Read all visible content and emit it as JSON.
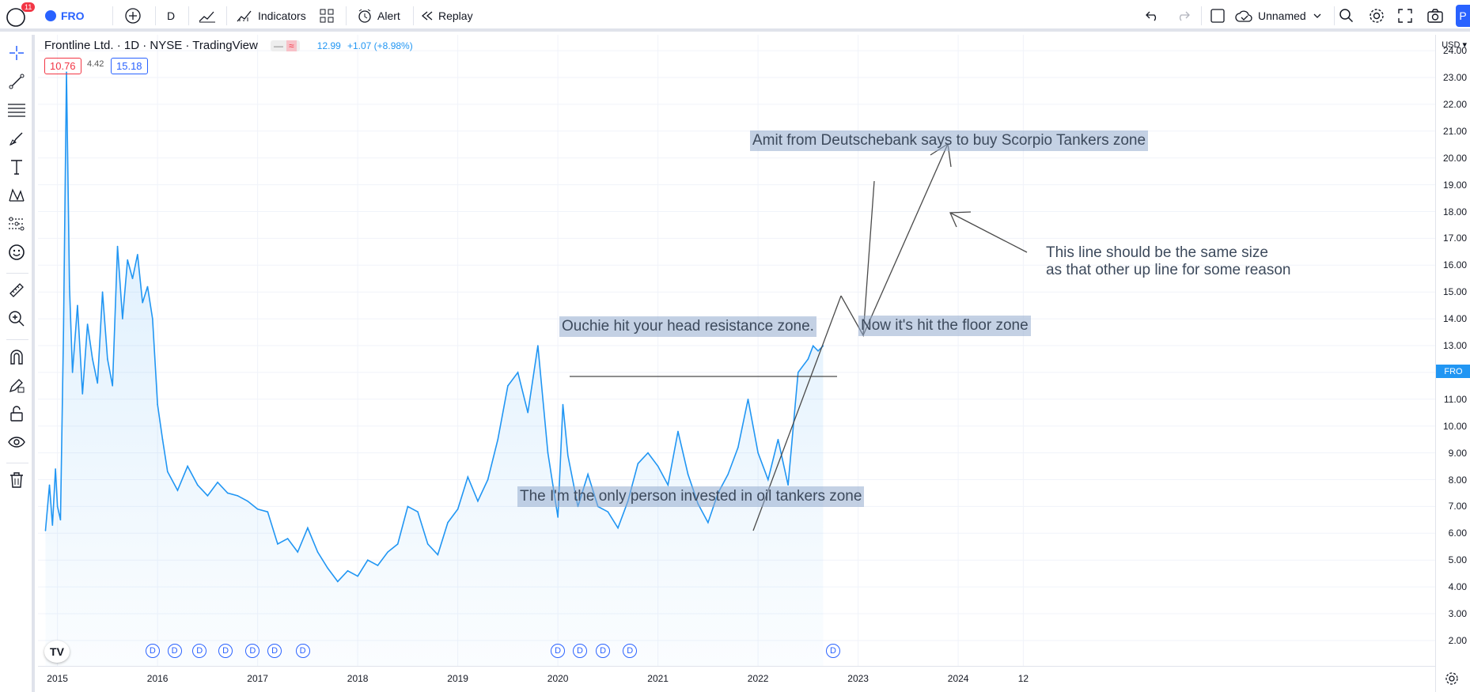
{
  "toolbar": {
    "badge_count": "11",
    "symbol": "FRO",
    "interval": "D",
    "indicators_label": "Indicators",
    "alert_label": "Alert",
    "replay_label": "Replay",
    "layout_name": "Unnamed",
    "publish_label": "P"
  },
  "legend": {
    "title": "Frontline Ltd. · 1D · NYSE · TradingView",
    "price": "12.99",
    "change": "+1.07 (+8.98%)",
    "sell": "10.76",
    "spread": "4.42",
    "buy": "15.18"
  },
  "annotations": {
    "a1": "Amit from Deutschebank says to buy Scorpio Tankers zone",
    "a2": "Ouchie hit your head resistance zone.",
    "a3": "Now it's hit the floor zone",
    "a4": "The I'm the only person invested in oil tankers zone",
    "a5_line1": "This line should be the same size",
    "a5_line2": "as that other up line for some reason"
  },
  "right_axis": {
    "currency": "USD",
    "ticks": [
      "24.00",
      "23.00",
      "22.00",
      "21.00",
      "20.00",
      "19.00",
      "18.00",
      "17.00",
      "16.00",
      "15.00",
      "14.00",
      "13.00",
      "12.00",
      "11.00",
      "10.00",
      "9.00",
      "8.00",
      "7.00",
      "6.00",
      "5.00",
      "4.00",
      "3.00",
      "2.00"
    ],
    "last_price_tag": "FRO"
  },
  "bottom_axis": {
    "ticks": [
      "2015",
      "2016",
      "2017",
      "2018",
      "2019",
      "2020",
      "2021",
      "2022",
      "2023",
      "2024",
      "12"
    ]
  },
  "dividend_marker": "D",
  "colors": {
    "line": "#2196f3",
    "accent": "#2962ff",
    "annotation_bg": "#94acce",
    "sell": "#f23645"
  },
  "chart_data": {
    "type": "area",
    "title": "",
    "xlabel": "",
    "ylabel": "",
    "ylim": [
      2,
      24.5
    ],
    "xlim": [
      2014.9,
      2024.8
    ],
    "series": [
      {
        "name": "",
        "x": [
          2014.88,
          2014.92,
          2014.95,
          2014.98,
          2015.0,
          2015.03,
          2015.06,
          2015.09,
          2015.12,
          2015.15,
          2015.2,
          2015.25,
          2015.3,
          2015.35,
          2015.4,
          2015.45,
          2015.5,
          2015.55,
          2015.6,
          2015.65,
          2015.7,
          2015.75,
          2015.8,
          2015.85,
          2015.9,
          2015.95,
          2016.0,
          2016.05,
          2016.1,
          2016.2,
          2016.3,
          2016.4,
          2016.5,
          2016.6,
          2016.7,
          2016.8,
          2016.9,
          2017.0,
          2017.1,
          2017.2,
          2017.3,
          2017.4,
          2017.5,
          2017.6,
          2017.7,
          2017.8,
          2017.9,
          2018.0,
          2018.1,
          2018.2,
          2018.3,
          2018.4,
          2018.5,
          2018.6,
          2018.7,
          2018.8,
          2018.9,
          2019.0,
          2019.1,
          2019.2,
          2019.3,
          2019.4,
          2019.5,
          2019.6,
          2019.7,
          2019.8,
          2019.9,
          2019.95,
          2020.0,
          2020.05,
          2020.1,
          2020.2,
          2020.3,
          2020.4,
          2020.5,
          2020.6,
          2020.7,
          2020.8,
          2020.9,
          2021.0,
          2021.1,
          2021.2,
          2021.3,
          2021.4,
          2021.5,
          2021.6,
          2021.7,
          2021.8,
          2021.9,
          2022.0,
          2022.1,
          2022.2,
          2022.3,
          2022.4,
          2022.5,
          2022.55,
          2022.6,
          2022.65
        ],
        "y": [
          6.1,
          7.8,
          6.3,
          8.4,
          7.0,
          6.5,
          13.5,
          23.2,
          15.2,
          12.0,
          14.5,
          11.2,
          13.8,
          12.5,
          11.6,
          15.0,
          12.5,
          11.5,
          16.7,
          14.0,
          16.2,
          15.5,
          16.4,
          14.6,
          15.2,
          14.0,
          10.8,
          9.5,
          8.3,
          7.6,
          8.5,
          7.8,
          7.4,
          7.9,
          7.5,
          7.4,
          7.2,
          6.9,
          6.8,
          5.6,
          5.8,
          5.3,
          6.2,
          5.3,
          4.7,
          4.2,
          4.6,
          4.4,
          5.0,
          4.8,
          5.3,
          5.6,
          7.0,
          6.8,
          5.6,
          5.2,
          6.4,
          6.9,
          8.1,
          7.2,
          8.0,
          9.5,
          11.5,
          12.0,
          10.5,
          13.0,
          9.0,
          7.8,
          6.6,
          10.8,
          8.9,
          7.0,
          8.2,
          7.0,
          6.8,
          6.2,
          7.2,
          8.6,
          9.0,
          8.5,
          7.8,
          9.8,
          8.2,
          7.1,
          6.4,
          7.5,
          8.2,
          9.2,
          11.0,
          9.0,
          8.0,
          9.5,
          7.8,
          12.0,
          12.5,
          12.99,
          12.8,
          12.99
        ]
      }
    ]
  }
}
